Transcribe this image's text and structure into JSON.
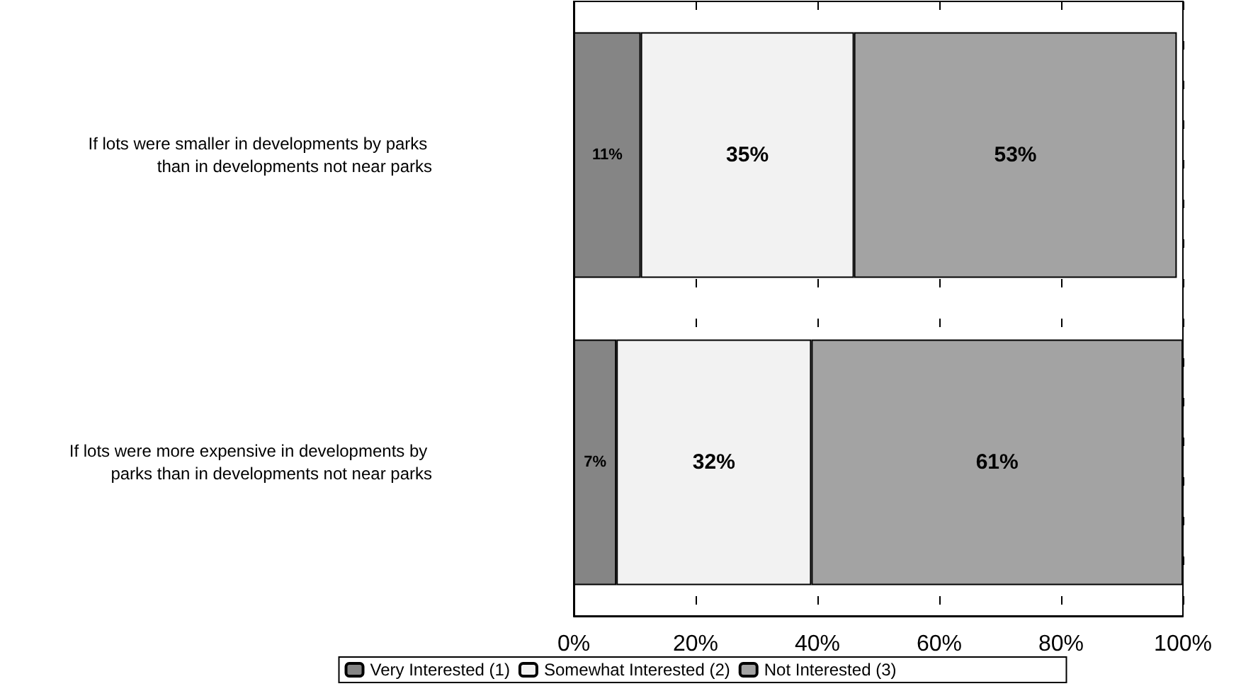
{
  "chart_data": {
    "type": "bar",
    "orientation": "horizontal",
    "stacked": true,
    "categories": [
      "If lots were smaller in developments by parks than in developments not near parks",
      "If lots were more expensive in developments by parks than in developments not near parks"
    ],
    "series": [
      {
        "name": "Very Interested (1)",
        "color": "#858585",
        "values": [
          11,
          7
        ],
        "value_labels": [
          "11%",
          "7%"
        ]
      },
      {
        "name": "Somewhat Interested (2)",
        "color": "#f2f2f2",
        "values": [
          35,
          32
        ],
        "value_labels": [
          "35%",
          "32%"
        ]
      },
      {
        "name": "Not Interested (3)",
        "color": "#a3a3a3",
        "values": [
          53,
          61
        ],
        "value_labels": [
          "53%",
          "61%"
        ]
      }
    ],
    "xlim": [
      0,
      100
    ],
    "xticks": [
      {
        "value": 0,
        "label": "0%"
      },
      {
        "value": 20,
        "label": "20%"
      },
      {
        "value": 40,
        "label": "40%"
      },
      {
        "value": 60,
        "label": "60%"
      },
      {
        "value": 80,
        "label": "80%"
      },
      {
        "value": 100,
        "label": "100%"
      }
    ],
    "grid": "x",
    "legend": "bottom"
  }
}
